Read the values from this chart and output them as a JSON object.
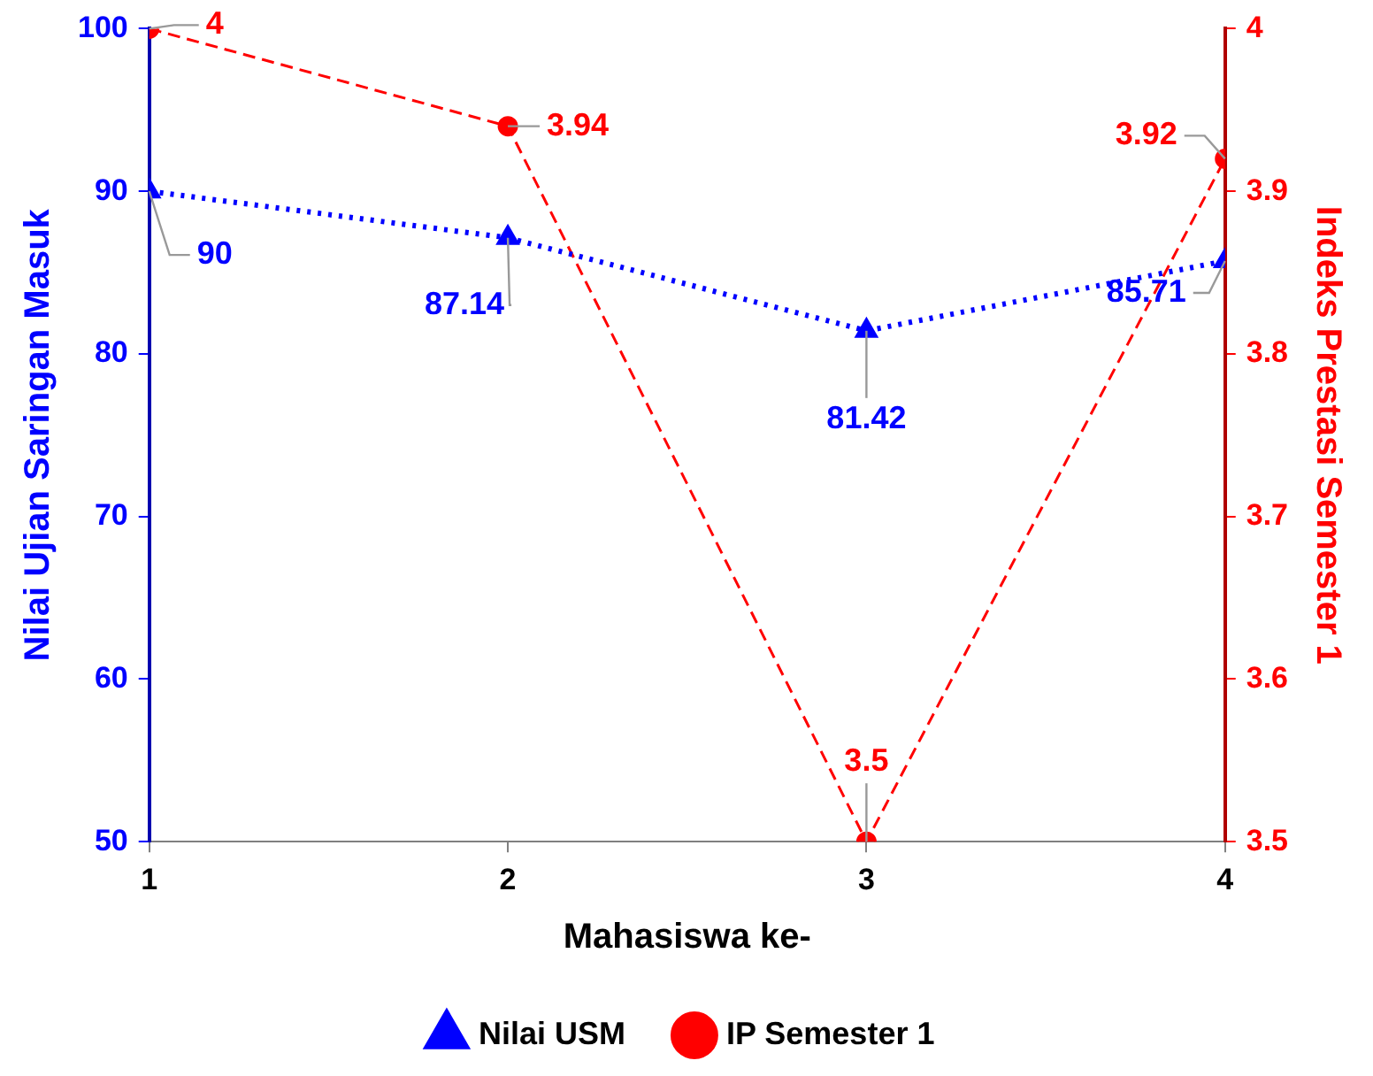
{
  "chart_data": {
    "type": "line",
    "xlabel": "Mahasiswa ke-",
    "ylabel": "Nilai Ujian Saringan Masuk",
    "y2label": "Indeks Prestasi Semester 1",
    "x": [
      1,
      2,
      3,
      4
    ],
    "xlim": [
      1,
      4
    ],
    "xticks": [
      1,
      2,
      3,
      4
    ],
    "ylim": [
      50,
      100
    ],
    "yticks": [
      50,
      60,
      70,
      80,
      90,
      100
    ],
    "y2lim": [
      3.5,
      4
    ],
    "y2ticks": [
      3.5,
      3.6,
      3.7,
      3.8,
      3.9,
      4
    ],
    "series": [
      {
        "name": "Nilai USM",
        "color": "#0000ff",
        "values": [
          90,
          87.14,
          81.42,
          85.71
        ],
        "marker": "triangle",
        "line_style": "dotted"
      },
      {
        "name": "IP Semester 1",
        "color": "#ff0000",
        "values": [
          4,
          3.94,
          3.5,
          3.92
        ],
        "axis": "y2",
        "marker": "circle",
        "line_style": "dashed"
      }
    ],
    "data_labels": true,
    "grid": false,
    "legend": "bottom"
  }
}
